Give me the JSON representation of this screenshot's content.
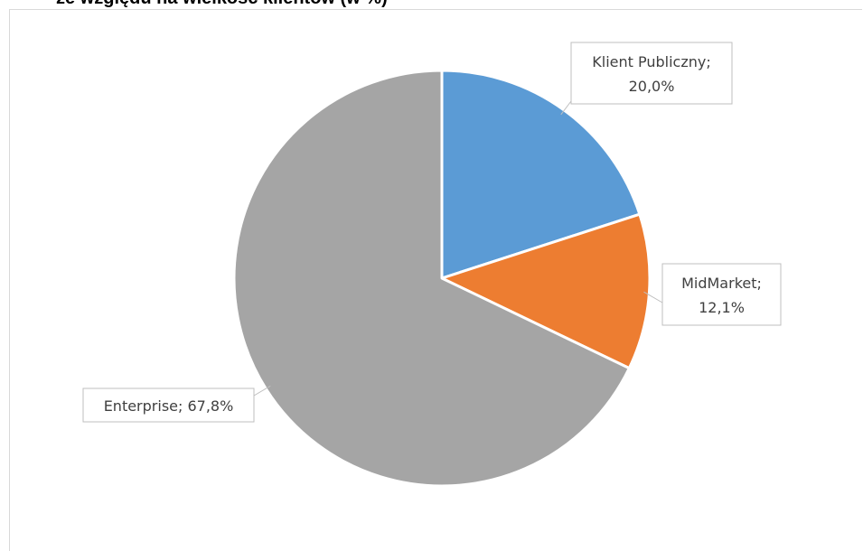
{
  "chart_data": {
    "type": "pie",
    "title": "ze względu na wielkość klientów (w %)",
    "slices": [
      {
        "label": "Klient Publiczny",
        "value": 20.0,
        "display": "20,0%",
        "color": "#5b9bd5"
      },
      {
        "label": "MidMarket",
        "value": 12.1,
        "display": "12,1%",
        "color": "#ed7d31"
      },
      {
        "label": "Enterprise",
        "value": 67.8,
        "display": "67,8%",
        "color": "#a5a5a5"
      }
    ],
    "start_angle_deg": 0,
    "direction": "clockwise",
    "data_labels": "callout",
    "legend": "none"
  }
}
